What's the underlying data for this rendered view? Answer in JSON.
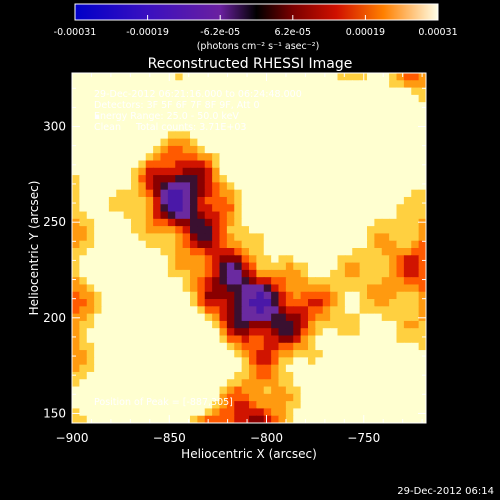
{
  "colorbar": {
    "ticks": [
      "-0.00031",
      "-0.00019",
      "-6.2e-05",
      "6.2e-05",
      "0.00019",
      "0.00031"
    ],
    "unit_label": "(photons cm⁻² s⁻¹ asec⁻²)",
    "range": [
      -0.00031,
      0.00031
    ]
  },
  "chart_data": {
    "type": "heatmap",
    "title": "Reconstructed RHESSI Image",
    "xlabel": "Heliocentric X (arcsec)",
    "ylabel": "Heliocentric Y (arcsec)",
    "xlim": [
      -900,
      -718
    ],
    "ylim": [
      145,
      328
    ],
    "xticks": [
      -900,
      -850,
      -800,
      -750
    ],
    "yticks": [
      150,
      200,
      250,
      300
    ],
    "peak": {
      "x": -887,
      "y": 305
    },
    "annotations": {
      "time_range": "29-Dec-2012 06:21:16.000 to 06:24:48.000",
      "detectors": "Detectors: 3F 5F 6F 7F 8F 9F, Att 0",
      "energy_range": "Energy Range: 25.0 - 50.0 keV",
      "method_counts": "Clean     Total counts: 3.71E+03",
      "peak_position": "Position of Peak = [-887,305]"
    }
  },
  "footer": {
    "timestamp": "29-Dec-2012 06:14"
  }
}
